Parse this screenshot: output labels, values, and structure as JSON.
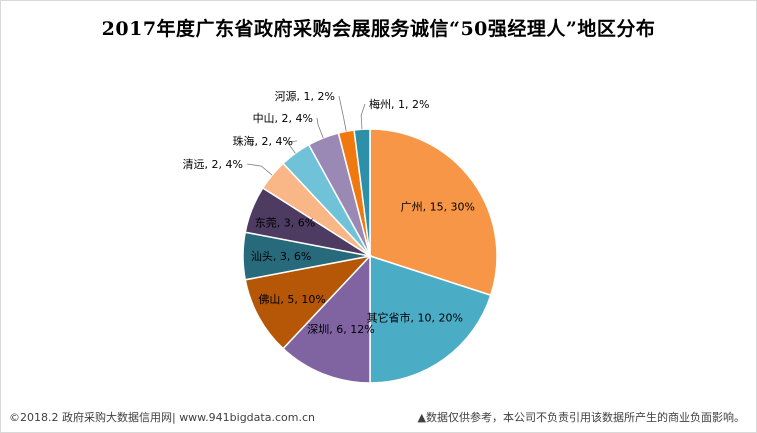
{
  "chart_data": {
    "type": "pie",
    "title": "2017年度广东省政府采购会展服务诚信“50强经理人”地区分布",
    "slices": [
      {
        "label": "广州",
        "value": 15,
        "percent": "30%",
        "color": "#F79646"
      },
      {
        "label": "其它省市",
        "value": 10,
        "percent": "20%",
        "color": "#4BACC6"
      },
      {
        "label": "深圳",
        "value": 6,
        "percent": "12%",
        "color": "#8064A2"
      },
      {
        "label": "佛山",
        "value": 5,
        "percent": "10%",
        "color": "#B65708"
      },
      {
        "label": "汕头",
        "value": 3,
        "percent": "6%",
        "color": "#276A7C"
      },
      {
        "label": "东莞",
        "value": 3,
        "percent": "6%",
        "color": "#4D3B62"
      },
      {
        "label": "清远",
        "value": 2,
        "percent": "4%",
        "color": "#F9B788"
      },
      {
        "label": "珠海",
        "value": 2,
        "percent": "4%",
        "color": "#6FC2D8"
      },
      {
        "label": "中山",
        "value": 2,
        "percent": "4%",
        "color": "#9B89B5"
      },
      {
        "label": "河源",
        "value": 1,
        "percent": "2%",
        "color": "#F0780F"
      },
      {
        "label": "梅州",
        "value": 1,
        "percent": "2%",
        "color": "#2E8FA8"
      }
    ]
  },
  "footer": {
    "left": "©2018.2 政府采购大数据信用网| www.941bigdata.com.cn",
    "right": "▲数据仅供参考，本公司不负责引用该数据所产生的商业负面影响。"
  }
}
